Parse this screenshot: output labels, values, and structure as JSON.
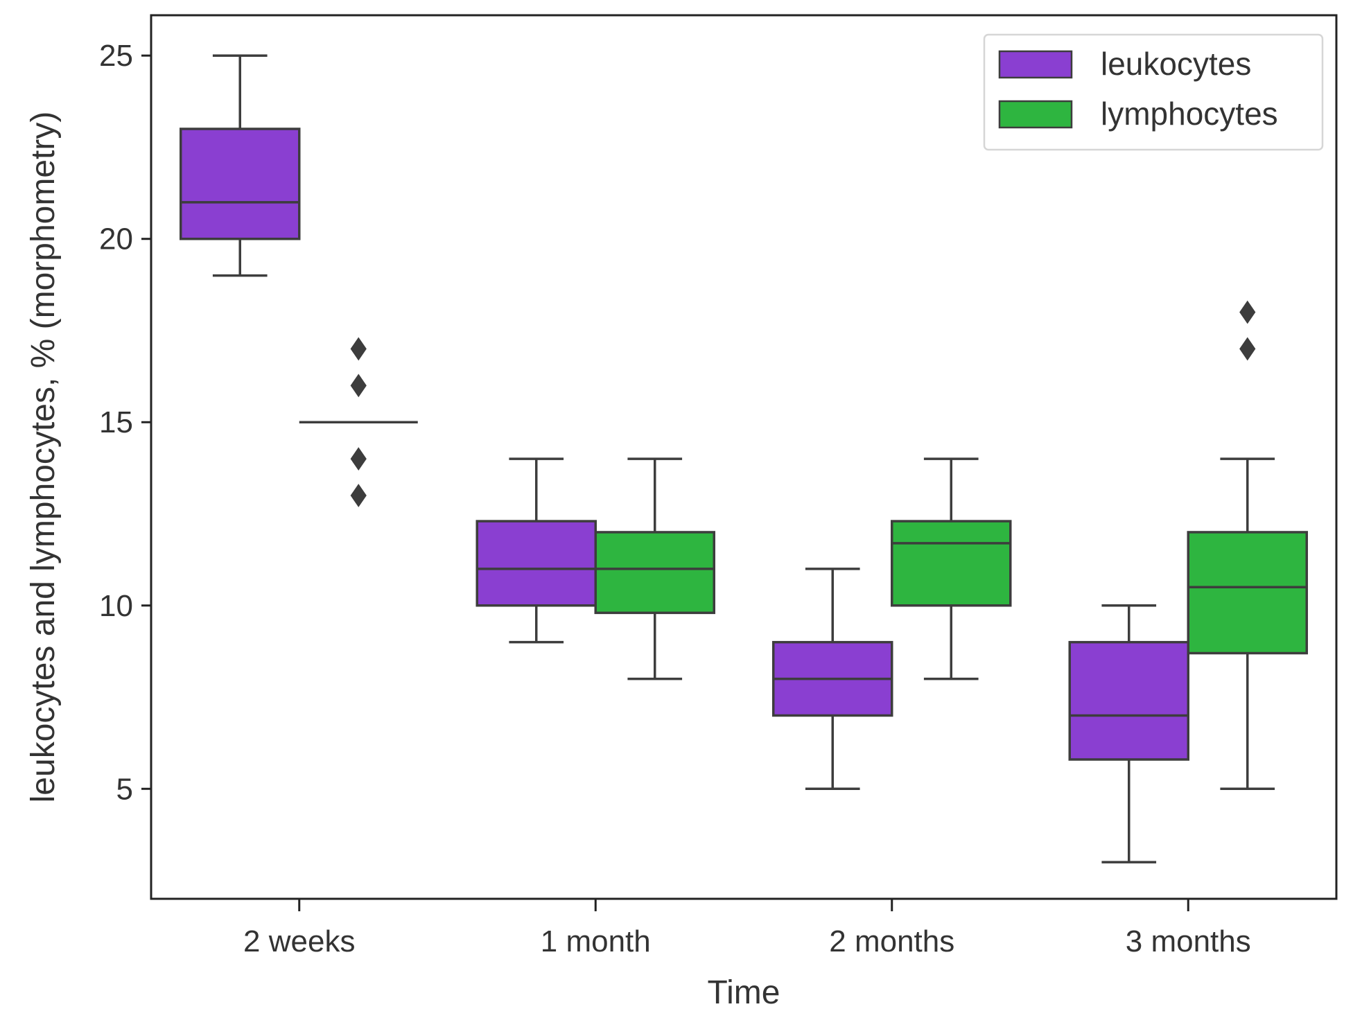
{
  "chart_data": {
    "type": "boxplot",
    "title": "",
    "xlabel": "Time",
    "ylabel": "leukocytes and lymphocytes, % (morphometry)",
    "categories": [
      "2 weeks",
      "1 month",
      "2 months",
      "3 months"
    ],
    "yticks": [
      5,
      10,
      15,
      20,
      25
    ],
    "ylim": [
      2,
      26.1
    ],
    "legend_position": "top-right",
    "series": [
      {
        "name": "leukocytes",
        "color": "#8a3fd1",
        "boxes": [
          {
            "whisker_low": 19,
            "q1": 20,
            "median": 21,
            "q3": 23,
            "whisker_high": 25,
            "outliers": []
          },
          {
            "whisker_low": 9,
            "q1": 10,
            "median": 11,
            "q3": 12.3,
            "whisker_high": 14,
            "outliers": []
          },
          {
            "whisker_low": 5,
            "q1": 7,
            "median": 8,
            "q3": 9,
            "whisker_high": 11,
            "outliers": []
          },
          {
            "whisker_low": 3,
            "q1": 5.8,
            "median": 7,
            "q3": 9,
            "whisker_high": 10,
            "outliers": []
          }
        ]
      },
      {
        "name": "lymphocytes",
        "color": "#2eb540",
        "boxes": [
          {
            "whisker_low": 15,
            "q1": 15,
            "median": 15,
            "q3": 15,
            "whisker_high": 15,
            "outliers": [
              13,
              14,
              16,
              17
            ]
          },
          {
            "whisker_low": 8,
            "q1": 9.8,
            "median": 11,
            "q3": 12,
            "whisker_high": 14,
            "outliers": []
          },
          {
            "whisker_low": 8,
            "q1": 10,
            "median": 11.7,
            "q3": 12.3,
            "whisker_high": 14,
            "outliers": []
          },
          {
            "whisker_low": 5,
            "q1": 8.7,
            "median": 10.5,
            "q3": 12,
            "whisker_high": 14,
            "outliers": [
              17,
              18
            ]
          }
        ]
      }
    ]
  }
}
